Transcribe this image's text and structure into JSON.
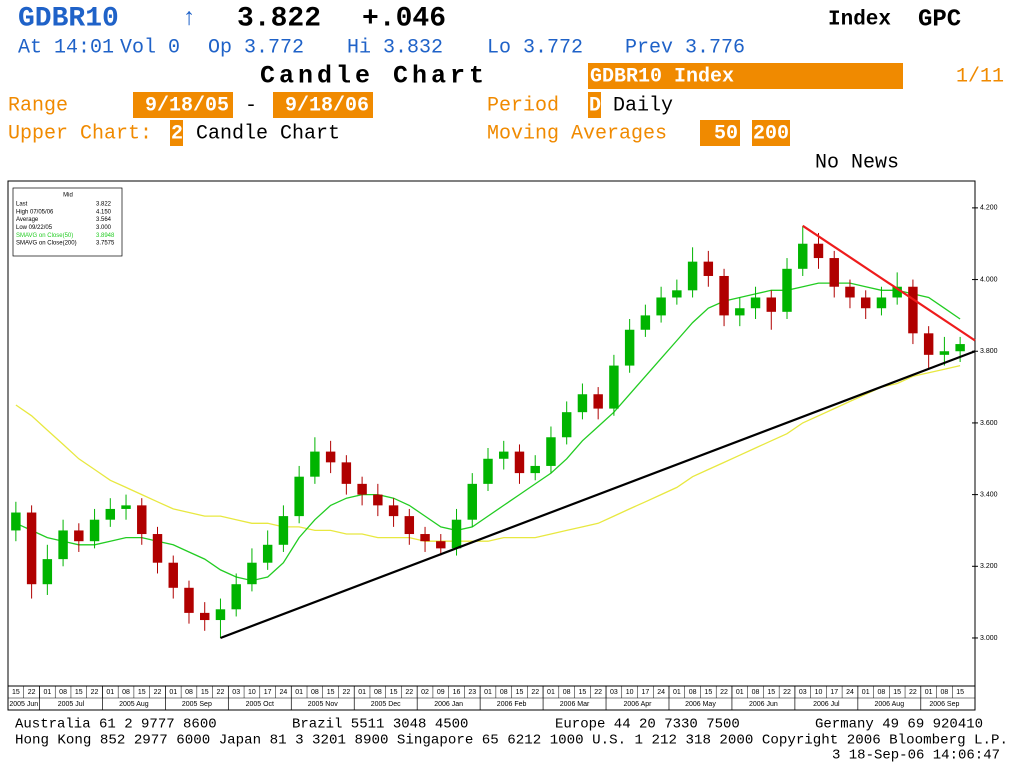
{
  "header": {
    "ticker": "GDBR10",
    "arrow": "↑",
    "price": "3.822",
    "change": "+.046",
    "index": "Index",
    "function": "GPC",
    "quote": {
      "time": "At 14:01",
      "volume": "Vol 0",
      "open": "Op 3.772",
      "high": "Hi 3.832",
      "low": "Lo 3.772",
      "prev": "Prev 3.776"
    },
    "title": "Candle Chart",
    "security": "GDBR10 Index",
    "page": "1/11",
    "range_label": "Range",
    "range_from": "9/18/05",
    "range_sep": "-",
    "range_to": "9/18/06",
    "period_label": "Period",
    "period_code": "D",
    "period": "Daily",
    "upper_label": "Upper Chart:",
    "upper_code": "2",
    "upper": "Candle Chart",
    "ma_label": "Moving Averages",
    "ma_short": "50",
    "ma_long": "200",
    "news": "No News"
  },
  "chart_data": {
    "type": "candlestick",
    "legend": {
      "title": "Mid",
      "rows": [
        {
          "label": "Last",
          "value": "3.822"
        },
        {
          "label": "High  07/05/06",
          "value": "4.150"
        },
        {
          "label": "Average",
          "value": "3.564"
        },
        {
          "label": "Low  09/22/05",
          "value": "3.000"
        },
        {
          "label": "SMAVG on Close(50)",
          "value": "3.8948"
        },
        {
          "label": "SMAVG on Close(200)",
          "value": "3.7575"
        }
      ]
    },
    "months": [
      {
        "label": "2005 Jun",
        "days": [
          "15",
          "22"
        ]
      },
      {
        "label": "2005 Jul",
        "days": [
          "01",
          "08",
          "15",
          "22"
        ]
      },
      {
        "label": "2005 Aug",
        "days": [
          "01",
          "08",
          "15",
          "22"
        ]
      },
      {
        "label": "2005 Sep",
        "days": [
          "01",
          "08",
          "15",
          "22"
        ]
      },
      {
        "label": "2005 Oct",
        "days": [
          "03",
          "10",
          "17",
          "24"
        ]
      },
      {
        "label": "2005 Nov",
        "days": [
          "01",
          "08",
          "15",
          "22"
        ]
      },
      {
        "label": "2005 Dec",
        "days": [
          "01",
          "08",
          "15",
          "22"
        ]
      },
      {
        "label": "2006 Jan",
        "days": [
          "02",
          "09",
          "16",
          "23"
        ]
      },
      {
        "label": "2006 Feb",
        "days": [
          "01",
          "08",
          "15",
          "22"
        ]
      },
      {
        "label": "2006 Mar",
        "days": [
          "01",
          "08",
          "15",
          "22"
        ]
      },
      {
        "label": "2006 Apr",
        "days": [
          "03",
          "10",
          "17",
          "24"
        ]
      },
      {
        "label": "2006 May",
        "days": [
          "01",
          "08",
          "15",
          "22"
        ]
      },
      {
        "label": "2006 Jun",
        "days": [
          "01",
          "08",
          "15",
          "22"
        ]
      },
      {
        "label": "2006 Jul",
        "days": [
          "03",
          "10",
          "17",
          "24"
        ]
      },
      {
        "label": "2006 Aug",
        "days": [
          "01",
          "08",
          "15",
          "22"
        ]
      },
      {
        "label": "2006 Sep",
        "days": [
          "01",
          "08",
          "15"
        ]
      }
    ],
    "open": [
      3.3,
      3.35,
      3.15,
      3.22,
      3.3,
      3.27,
      3.33,
      3.36,
      3.37,
      3.29,
      3.21,
      3.14,
      3.07,
      3.05,
      3.08,
      3.15,
      3.21,
      3.26,
      3.34,
      3.45,
      3.52,
      3.49,
      3.43,
      3.4,
      3.37,
      3.34,
      3.29,
      3.27,
      3.25,
      3.33,
      3.43,
      3.5,
      3.52,
      3.46,
      3.48,
      3.56,
      3.63,
      3.68,
      3.64,
      3.76,
      3.86,
      3.9,
      3.95,
      3.97,
      4.05,
      4.01,
      3.9,
      3.92,
      3.95,
      3.91,
      4.03,
      4.1,
      4.06,
      3.98,
      3.95,
      3.92,
      3.95,
      3.98,
      3.85,
      3.79,
      3.8
    ],
    "high": [
      3.38,
      3.37,
      3.26,
      3.33,
      3.32,
      3.36,
      3.39,
      3.4,
      3.39,
      3.31,
      3.23,
      3.16,
      3.1,
      3.11,
      3.18,
      3.25,
      3.3,
      3.37,
      3.48,
      3.56,
      3.55,
      3.51,
      3.45,
      3.43,
      3.39,
      3.36,
      3.31,
      3.29,
      3.36,
      3.46,
      3.53,
      3.55,
      3.54,
      3.51,
      3.59,
      3.66,
      3.71,
      3.7,
      3.79,
      3.89,
      3.93,
      3.98,
      4.0,
      4.09,
      4.08,
      4.03,
      3.95,
      3.98,
      3.97,
      4.06,
      4.15,
      4.13,
      4.08,
      4.0,
      3.97,
      3.98,
      4.02,
      4.0,
      3.87,
      3.84,
      3.84
    ],
    "low": [
      3.27,
      3.11,
      3.12,
      3.2,
      3.24,
      3.25,
      3.31,
      3.33,
      3.26,
      3.18,
      3.11,
      3.04,
      3.02,
      3.0,
      3.06,
      3.13,
      3.19,
      3.24,
      3.32,
      3.43,
      3.46,
      3.4,
      3.37,
      3.34,
      3.31,
      3.26,
      3.24,
      3.23,
      3.23,
      3.31,
      3.41,
      3.47,
      3.43,
      3.44,
      3.46,
      3.54,
      3.61,
      3.61,
      3.62,
      3.74,
      3.84,
      3.88,
      3.93,
      3.95,
      3.98,
      3.87,
      3.87,
      3.89,
      3.86,
      3.89,
      4.01,
      4.03,
      3.95,
      3.92,
      3.89,
      3.9,
      3.93,
      3.82,
      3.75,
      3.76,
      3.77
    ],
    "close": [
      3.35,
      3.15,
      3.22,
      3.3,
      3.27,
      3.33,
      3.36,
      3.37,
      3.29,
      3.21,
      3.14,
      3.07,
      3.05,
      3.08,
      3.15,
      3.21,
      3.26,
      3.34,
      3.45,
      3.52,
      3.49,
      3.43,
      3.4,
      3.37,
      3.34,
      3.29,
      3.27,
      3.25,
      3.33,
      3.43,
      3.5,
      3.52,
      3.46,
      3.48,
      3.56,
      3.63,
      3.68,
      3.64,
      3.76,
      3.86,
      3.9,
      3.95,
      3.97,
      4.05,
      4.01,
      3.9,
      3.92,
      3.95,
      3.91,
      4.03,
      4.1,
      4.06,
      3.98,
      3.95,
      3.92,
      3.95,
      3.98,
      3.85,
      3.79,
      3.8,
      3.82
    ],
    "up_color": "#00b400",
    "down_color": "#b00000",
    "ma50": {
      "color": "#22cc22",
      "values": [
        3.32,
        3.3,
        3.28,
        3.27,
        3.26,
        3.26,
        3.27,
        3.28,
        3.28,
        3.27,
        3.26,
        3.24,
        3.22,
        3.19,
        3.17,
        3.16,
        3.17,
        3.21,
        3.28,
        3.33,
        3.37,
        3.39,
        3.4,
        3.4,
        3.39,
        3.37,
        3.34,
        3.31,
        3.3,
        3.31,
        3.34,
        3.37,
        3.4,
        3.43,
        3.46,
        3.5,
        3.55,
        3.59,
        3.63,
        3.68,
        3.73,
        3.78,
        3.83,
        3.88,
        3.92,
        3.94,
        3.95,
        3.96,
        3.97,
        3.97,
        3.98,
        3.99,
        3.99,
        3.99,
        3.98,
        3.97,
        3.97,
        3.96,
        3.95,
        3.92,
        3.89
      ]
    },
    "ma200": {
      "color": "#e8e840",
      "values": [
        3.65,
        3.62,
        3.58,
        3.54,
        3.5,
        3.47,
        3.44,
        3.42,
        3.4,
        3.38,
        3.36,
        3.35,
        3.34,
        3.34,
        3.33,
        3.32,
        3.32,
        3.31,
        3.31,
        3.3,
        3.3,
        3.29,
        3.29,
        3.28,
        3.28,
        3.28,
        3.27,
        3.27,
        3.27,
        3.27,
        3.27,
        3.28,
        3.28,
        3.28,
        3.29,
        3.3,
        3.31,
        3.32,
        3.34,
        3.36,
        3.38,
        3.4,
        3.42,
        3.45,
        3.47,
        3.49,
        3.51,
        3.53,
        3.55,
        3.57,
        3.6,
        3.62,
        3.64,
        3.66,
        3.68,
        3.7,
        3.71,
        3.73,
        3.74,
        3.75,
        3.76
      ]
    },
    "trendlines": [
      {
        "color": "#000000",
        "from": {
          "week": 13,
          "value": 3.0
        },
        "to": {
          "week": 61,
          "value": 3.8
        }
      },
      {
        "color": "#ee1c1c",
        "from": {
          "week": 50,
          "value": 4.15
        },
        "to": {
          "week": 61,
          "value": 3.83
        }
      }
    ],
    "ylim": [
      2.866,
      4.275
    ],
    "yticks": [
      {
        "value": 3,
        "label": "3.000"
      },
      {
        "value": 3.2,
        "label": "3.200"
      },
      {
        "value": 3.4,
        "label": "3.400"
      },
      {
        "value": 3.6,
        "label": "3.600"
      },
      {
        "value": 3.8,
        "label": "3.800"
      },
      {
        "value": 4,
        "label": "4.000"
      },
      {
        "value": 4.2,
        "label": "4.200"
      }
    ]
  },
  "footer": {
    "line1": [
      "Australia 61 2 9777 8600",
      "Brazil 5511 3048 4500",
      "Europe 44 20 7330 7500",
      "Germany 49 69 920410"
    ],
    "line2": "Hong Kong 852 2977 6000 Japan 81 3 3201 8900 Singapore 65 6212 1000 U.S. 1 212 318 2000 Copyright 2006 Bloomberg L.P.",
    "line3": "3 18-Sep-06 14:06:47"
  }
}
